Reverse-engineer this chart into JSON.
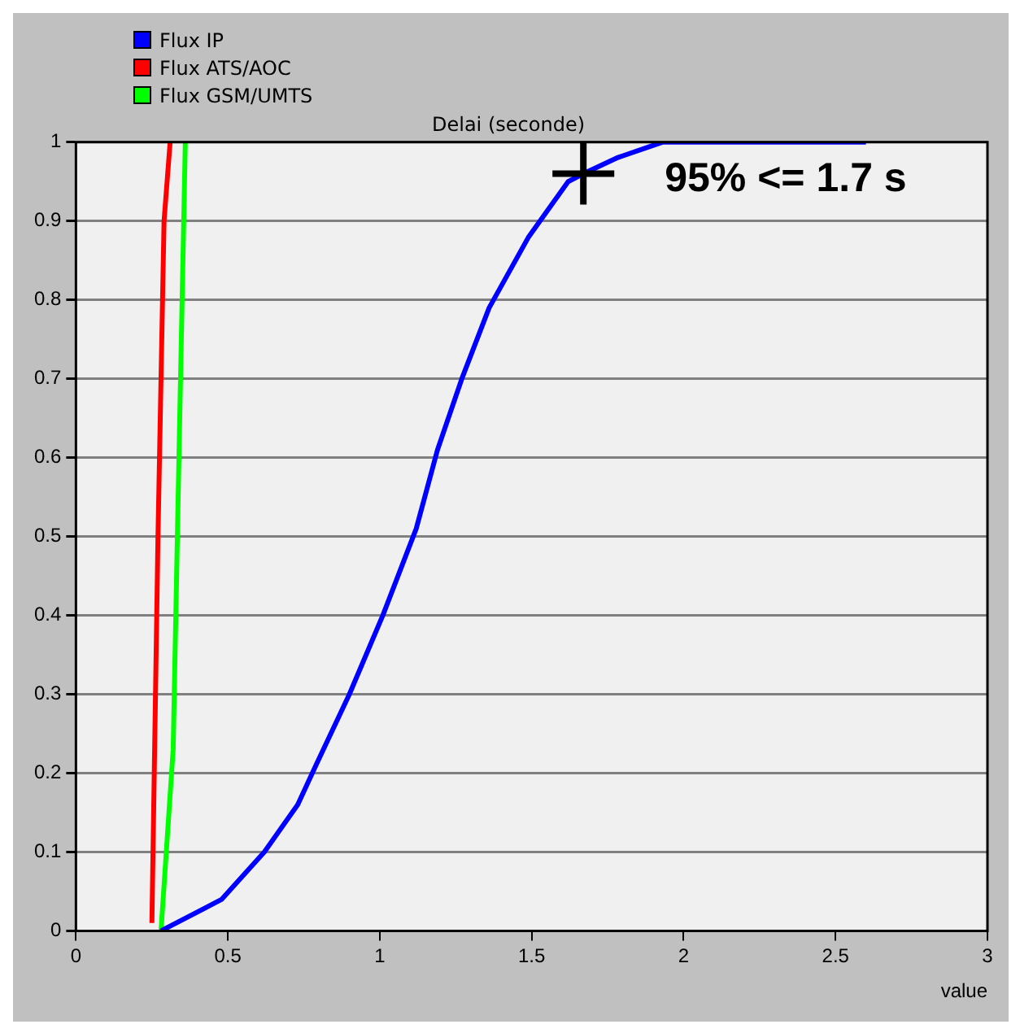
{
  "chart_data": {
    "type": "line",
    "title": "Delai (seconde)",
    "xlabel": "value",
    "xlim": [
      0,
      3
    ],
    "xticks": [
      0,
      0.5,
      1,
      1.5,
      2,
      2.5,
      3
    ],
    "ylim": [
      0,
      1
    ],
    "yticks": [
      0,
      0.1,
      0.2,
      0.3,
      0.4,
      0.5,
      0.6,
      0.7,
      0.8,
      0.9,
      1
    ],
    "grid": "y",
    "legend": "top left",
    "marker": "none",
    "line_style": "solid",
    "series": [
      {
        "name": "Flux IP",
        "color": "#0000ff",
        "x": [
          0.28,
          0.48,
          0.62,
          0.73,
          0.79,
          0.9,
          1.01,
          1.12,
          1.19,
          1.27,
          1.36,
          1.49,
          1.62,
          1.67,
          1.78,
          1.93,
          2.1,
          2.6
        ],
        "values": [
          0,
          0.04,
          0.1,
          0.16,
          0.21,
          0.3,
          0.4,
          0.51,
          0.61,
          0.7,
          0.79,
          0.88,
          0.95,
          0.96,
          0.98,
          1,
          1,
          1
        ]
      },
      {
        "name": "Flux ATS/AOC",
        "color": "#ff0000",
        "x": [
          0.25,
          0.27,
          0.29,
          0.31
        ],
        "values": [
          0.01,
          0.5,
          0.9,
          1
        ]
      },
      {
        "name": "Flux GSM/UMTS",
        "color": "#00ff00",
        "x": [
          0.28,
          0.32,
          0.34,
          0.36
        ],
        "values": [
          0,
          0.23,
          0.62,
          1
        ]
      }
    ],
    "annotations": [
      {
        "text": "95% <= 1.7 s",
        "x": 1.67,
        "y": 0.96
      }
    ]
  }
}
